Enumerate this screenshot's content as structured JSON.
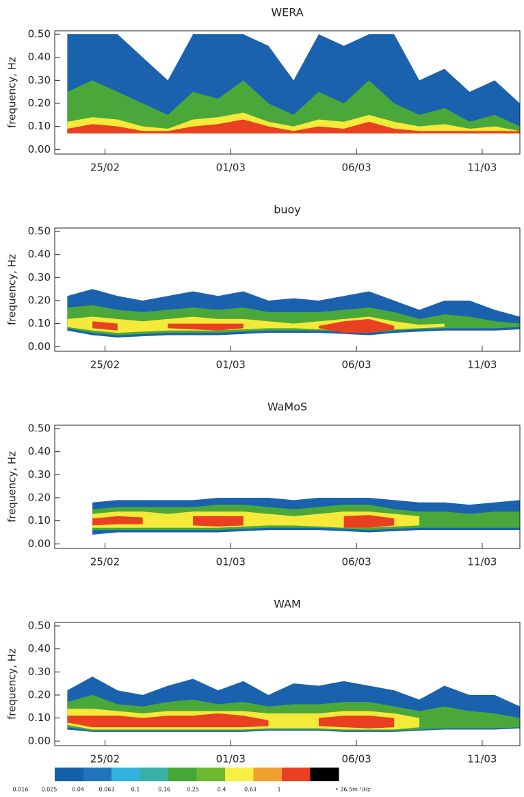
{
  "chart_data": {
    "type": "contour",
    "ylabel": "frequency, Hz",
    "ylim": [
      -0.02,
      0.515
    ],
    "yticks": [
      {
        "value": 0,
        "label": "0.00"
      },
      {
        "value": 0.1,
        "label": "0.10"
      },
      {
        "value": 0.2,
        "label": "0.20"
      },
      {
        "value": 0.3,
        "label": "0.30"
      },
      {
        "value": 0.4,
        "label": "0.40"
      },
      {
        "value": 0.5,
        "label": "0.50"
      }
    ],
    "xlim": [
      -2,
      16.5
    ],
    "xticks": [
      {
        "value": 0,
        "label": "25/02"
      },
      {
        "value": 5,
        "label": "01/03"
      },
      {
        "value": 10,
        "label": "06/03"
      },
      {
        "value": 15,
        "label": "11/03"
      }
    ],
    "x": [
      -1.5,
      -0.5,
      0.5,
      1.5,
      2.5,
      3.5,
      4.5,
      5.5,
      6.5,
      7.5,
      8.5,
      9.5,
      10.5,
      11.5,
      12.5,
      13.5,
      14.5,
      15.5,
      16.5
    ],
    "panels": [
      {
        "title": "WERA",
        "bands": [
          {
            "color": "#1a62ad",
            "low": [
              0.07,
              0.07,
              0.07,
              0.07,
              0.07,
              0.07,
              0.07,
              0.07,
              0.07,
              0.07,
              0.07,
              0.07,
              0.07,
              0.07,
              0.07,
              0.07,
              0.07,
              0.07,
              0.07
            ],
            "high": [
              0.5,
              0.5,
              0.5,
              0.4,
              0.3,
              0.5,
              0.5,
              0.5,
              0.45,
              0.3,
              0.5,
              0.45,
              0.5,
              0.5,
              0.3,
              0.35,
              0.25,
              0.3,
              0.2
            ]
          },
          {
            "color": "#4aa83a",
            "low": [
              0.07,
              0.07,
              0.07,
              0.07,
              0.07,
              0.07,
              0.07,
              0.07,
              0.07,
              0.07,
              0.07,
              0.07,
              0.07,
              0.07,
              0.07,
              0.07,
              0.07,
              0.07,
              0.07
            ],
            "high": [
              0.25,
              0.3,
              0.25,
              0.2,
              0.15,
              0.25,
              0.22,
              0.3,
              0.2,
              0.15,
              0.25,
              0.2,
              0.3,
              0.2,
              0.15,
              0.18,
              0.12,
              0.15,
              0.1
            ]
          },
          {
            "color": "#f5e93a",
            "low": [
              0.07,
              0.07,
              0.07,
              0.07,
              0.07,
              0.07,
              0.07,
              0.07,
              0.07,
              0.07,
              0.07,
              0.07,
              0.07,
              0.07,
              0.07,
              0.07,
              0.07,
              0.07,
              0.07
            ],
            "high": [
              0.12,
              0.14,
              0.13,
              0.1,
              0.09,
              0.13,
              0.14,
              0.16,
              0.12,
              0.1,
              0.13,
              0.12,
              0.15,
              0.12,
              0.1,
              0.11,
              0.09,
              0.1,
              0.08
            ]
          },
          {
            "color": "#e84020",
            "low": [
              0.07,
              0.07,
              0.07,
              0.07,
              0.07,
              0.07,
              0.07,
              0.07,
              0.07,
              0.07,
              0.07,
              0.07,
              0.07,
              0.07,
              0.07,
              0.07,
              0.07,
              0.07,
              0.07
            ],
            "high": [
              0.09,
              0.11,
              0.1,
              0.08,
              0.08,
              0.1,
              0.11,
              0.13,
              0.1,
              0.08,
              0.1,
              0.09,
              0.12,
              0.09,
              0.08,
              0.08,
              0.08,
              0.08,
              0.08
            ]
          }
        ]
      },
      {
        "title": "buoy",
        "bands": [
          {
            "color": "#1a62ad",
            "low": [
              0.07,
              0.05,
              0.04,
              0.045,
              0.05,
              0.05,
              0.05,
              0.055,
              0.06,
              0.06,
              0.06,
              0.055,
              0.05,
              0.06,
              0.065,
              0.07,
              0.07,
              0.07,
              0.075
            ],
            "high": [
              0.22,
              0.25,
              0.22,
              0.2,
              0.22,
              0.24,
              0.22,
              0.24,
              0.2,
              0.21,
              0.2,
              0.22,
              0.24,
              0.2,
              0.16,
              0.2,
              0.2,
              0.16,
              0.13
            ]
          },
          {
            "color": "#4aa83a",
            "low": [
              0.08,
              0.06,
              0.05,
              0.055,
              0.06,
              0.06,
              0.06,
              0.065,
              0.07,
              0.07,
              0.07,
              0.065,
              0.06,
              0.07,
              0.075,
              0.08,
              0.08,
              0.08,
              0.085
            ],
            "high": [
              0.17,
              0.18,
              0.16,
              0.15,
              0.16,
              0.17,
              0.16,
              0.17,
              0.15,
              0.15,
              0.15,
              0.16,
              0.17,
              0.15,
              0.12,
              0.14,
              0.13,
              0.11,
              0.1
            ]
          },
          {
            "color": "#f5e93a",
            "low": [
              0.085,
              0.07,
              0.06,
              0.065,
              0.07,
              0.07,
              0.07,
              0.075,
              0.08,
              0.08,
              0.075,
              0.07,
              0.065,
              0.075,
              0.08,
              0.085,
              null,
              null,
              null
            ],
            "high": [
              0.12,
              0.13,
              0.12,
              0.11,
              0.12,
              0.13,
              0.12,
              0.12,
              0.11,
              0.1,
              0.11,
              0.12,
              0.13,
              0.11,
              0.095,
              0.1,
              null,
              null,
              null
            ]
          },
          {
            "color": "#e84020",
            "low": [
              null,
              0.08,
              0.07,
              null,
              0.08,
              0.075,
              0.07,
              0.08,
              null,
              null,
              0.08,
              0.06,
              0.06,
              0.075,
              null,
              null,
              null,
              null,
              null
            ],
            "high": [
              null,
              0.11,
              0.1,
              null,
              0.1,
              0.1,
              0.1,
              0.1,
              null,
              null,
              0.09,
              0.11,
              0.12,
              0.09,
              null,
              null,
              null,
              null,
              null
            ]
          }
        ]
      },
      {
        "title": "WaMoS",
        "bands": [
          {
            "color": "#1a62ad",
            "low": [
              null,
              0.04,
              0.05,
              0.05,
              0.05,
              0.05,
              0.05,
              0.055,
              0.06,
              0.06,
              0.06,
              0.055,
              0.05,
              0.055,
              0.06,
              0.06,
              0.06,
              0.06,
              0.06
            ],
            "high": [
              null,
              0.18,
              0.19,
              0.19,
              0.19,
              0.19,
              0.2,
              0.2,
              0.2,
              0.19,
              0.2,
              0.2,
              0.2,
              0.19,
              0.18,
              0.18,
              0.17,
              0.18,
              0.19
            ]
          },
          {
            "color": "#4aa83a",
            "low": [
              null,
              0.06,
              0.06,
              0.06,
              0.06,
              0.06,
              0.06,
              0.065,
              0.07,
              0.07,
              0.07,
              0.065,
              0.06,
              0.065,
              0.07,
              0.07,
              0.07,
              0.07,
              0.07
            ],
            "high": [
              null,
              0.15,
              0.16,
              0.16,
              0.16,
              0.16,
              0.17,
              0.17,
              0.16,
              0.15,
              0.16,
              0.17,
              0.17,
              0.15,
              0.14,
              0.14,
              0.13,
              0.14,
              0.14
            ]
          },
          {
            "color": "#f5e93a",
            "low": [
              null,
              0.07,
              0.07,
              0.07,
              0.07,
              0.07,
              0.07,
              0.075,
              0.08,
              0.08,
              0.075,
              0.07,
              0.07,
              0.075,
              0.08,
              null,
              null,
              null,
              null
            ],
            "high": [
              null,
              0.13,
              0.14,
              0.14,
              0.13,
              0.14,
              0.14,
              0.14,
              0.13,
              0.12,
              0.13,
              0.14,
              0.14,
              0.13,
              0.12,
              null,
              null,
              null,
              null
            ]
          },
          {
            "color": "#e84020",
            "low": [
              null,
              0.08,
              0.085,
              0.085,
              null,
              0.08,
              0.075,
              0.08,
              null,
              null,
              null,
              0.07,
              0.07,
              0.08,
              null,
              null,
              null,
              null,
              null
            ],
            "high": [
              null,
              0.11,
              0.12,
              0.115,
              null,
              0.12,
              0.12,
              0.12,
              null,
              null,
              null,
              0.12,
              0.125,
              0.11,
              null,
              null,
              null,
              null,
              null
            ]
          }
        ]
      },
      {
        "title": "WAM",
        "bands": [
          {
            "color": "#1a62ad",
            "low": [
              0.05,
              0.04,
              0.04,
              0.04,
              0.04,
              0.04,
              0.04,
              0.04,
              0.045,
              0.045,
              0.045,
              0.04,
              0.04,
              0.04,
              0.045,
              0.05,
              0.05,
              0.05,
              0.055
            ],
            "high": [
              0.22,
              0.28,
              0.22,
              0.2,
              0.24,
              0.27,
              0.22,
              0.26,
              0.2,
              0.25,
              0.24,
              0.26,
              0.24,
              0.22,
              0.18,
              0.24,
              0.2,
              0.2,
              0.15
            ]
          },
          {
            "color": "#4aa83a",
            "low": [
              0.06,
              0.045,
              0.045,
              0.045,
              0.045,
              0.045,
              0.045,
              0.045,
              0.05,
              0.05,
              0.05,
              0.045,
              0.045,
              0.045,
              0.05,
              0.055,
              0.055,
              0.055,
              0.06
            ],
            "high": [
              0.17,
              0.2,
              0.16,
              0.15,
              0.17,
              0.18,
              0.16,
              0.17,
              0.15,
              0.16,
              0.16,
              0.17,
              0.17,
              0.15,
              0.13,
              0.15,
              0.13,
              0.12,
              0.1
            ]
          },
          {
            "color": "#f5e93a",
            "low": [
              0.07,
              0.05,
              0.05,
              0.05,
              0.05,
              0.05,
              0.05,
              0.05,
              0.055,
              0.055,
              0.055,
              0.05,
              0.05,
              0.05,
              0.06,
              null,
              null,
              null,
              null
            ],
            "high": [
              0.14,
              0.14,
              0.13,
              0.12,
              0.13,
              0.13,
              0.13,
              0.13,
              0.12,
              0.12,
              0.12,
              0.13,
              0.13,
              0.12,
              0.1,
              null,
              null,
              null,
              null
            ]
          },
          {
            "color": "#e84020",
            "low": [
              0.08,
              0.06,
              0.06,
              0.06,
              0.06,
              0.06,
              0.06,
              0.06,
              0.065,
              null,
              0.065,
              0.06,
              0.055,
              0.06,
              null,
              null,
              null,
              null,
              null
            ],
            "high": [
              0.11,
              0.11,
              0.11,
              0.1,
              0.11,
              0.11,
              0.12,
              0.11,
              0.09,
              null,
              0.1,
              0.11,
              0.11,
              0.1,
              null,
              null,
              null,
              null,
              null
            ]
          }
        ]
      }
    ],
    "colorbar": {
      "levels": [
        0.016,
        0.025,
        0.04,
        0.063,
        0.1,
        0.16,
        0.25,
        0.4,
        0.63,
        1
      ],
      "colors": [
        "#1560a8",
        "#1f74bb",
        "#33b2e2",
        "#3aafa5",
        "#46a637",
        "#6cb830",
        "#f8f040",
        "#f0a030",
        "#e84020",
        "#000000"
      ],
      "note": "• 36.5m ²/Hz"
    }
  }
}
